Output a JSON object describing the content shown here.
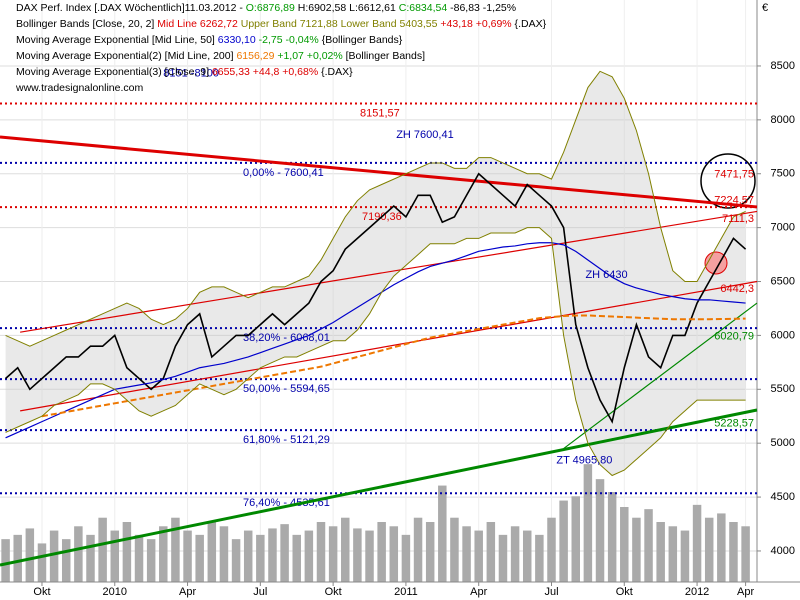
{
  "chart_data": {
    "type": "line",
    "currency": "€",
    "legend": [
      [
        {
          "text": "DAX Perf. Index [.DAX  Wöchentlich]",
          "color": "#000000"
        },
        {
          "text": "11.03.2012 - ",
          "color": "#000000"
        },
        {
          "text": "O:6876,89",
          "color": "#009900"
        },
        {
          "text": " H:6902,58 L:6612,61 ",
          "color": "#000000"
        },
        {
          "text": "C:6834,54",
          "color": "#009900"
        },
        {
          "text": " -86,83 -1,25%",
          "color": "#000000"
        }
      ],
      [
        {
          "text": "Bollinger Bands [Close, 20, 2]",
          "color": "#000000"
        },
        {
          "text": " Mid Line 6262,72",
          "color": "#dd0000"
        },
        {
          "text": " Upper Band 7121,88",
          "color": "#808000"
        },
        {
          "text": " Lower Band 5403,55",
          "color": "#808000"
        },
        {
          "text": " +43,18 +0,69%",
          "color": "#dd0000"
        },
        {
          "text": " {.DAX}",
          "color": "#000000"
        }
      ],
      [
        {
          "text": "Moving Average Exponential [Mid Line, 50]",
          "color": "#000000"
        },
        {
          "text": " 6330,10",
          "color": "#0000cc"
        },
        {
          "text": " -2,75 -0,04%",
          "color": "#009900"
        },
        {
          "text": " {Bollinger Bands}",
          "color": "#000000"
        }
      ],
      [
        {
          "text": "Moving Average Exponential(2) [Mid Line, 200]",
          "color": "#000000"
        },
        {
          "text": " 6156,29",
          "color": "#ee7700"
        },
        {
          "text": " +1,07 +0,02%",
          "color": "#009900"
        },
        {
          "text": " [Bollinger Bands]",
          "color": "#000000"
        }
      ],
      [
        {
          "text": "Moving Average Exponential(3) [Close, 9]",
          "color": "#000000"
        },
        {
          "text": " 6655,33 +44,8 +0,68%",
          "color": "#dd0000"
        },
        {
          "text": " {.DAX}",
          "color": "#000000"
        }
      ]
    ],
    "source": "www.tradesignalonline.com",
    "xlim": [
      -1.73,
      29.47
    ],
    "xticks": [
      {
        "value": 0,
        "label": "Okt"
      },
      {
        "value": 3,
        "label": "2010"
      },
      {
        "value": 6,
        "label": "Apr"
      },
      {
        "value": 9,
        "label": "Jul"
      },
      {
        "value": 12,
        "label": "Okt"
      },
      {
        "value": 15,
        "label": "2011"
      },
      {
        "value": 18,
        "label": "Apr"
      },
      {
        "value": 21,
        "label": "Jul"
      },
      {
        "value": 24,
        "label": "Okt"
      },
      {
        "value": 27,
        "label": "2012"
      },
      {
        "value": 29,
        "label": "Apr"
      }
    ],
    "ylim": [
      3545,
      9112
    ],
    "yticks": [
      4000,
      4500,
      5000,
      5500,
      6000,
      6500,
      7000,
      7500,
      8000,
      8500
    ],
    "x": [
      -1.5,
      -1,
      -0.5,
      0,
      0.5,
      1,
      1.5,
      2,
      2.5,
      3,
      3.5,
      4,
      4.5,
      5,
      5.5,
      6,
      6.5,
      7,
      7.5,
      8,
      8.5,
      9,
      9.5,
      10,
      10.5,
      11,
      11.5,
      12,
      12.5,
      13,
      13.5,
      14,
      14.5,
      15,
      15.5,
      16,
      16.5,
      17,
      17.5,
      18,
      18.5,
      19,
      19.5,
      20,
      20.5,
      21,
      21.5,
      22,
      22.5,
      23,
      23.5,
      24,
      24.5,
      25,
      25.5,
      26,
      26.5,
      27,
      27.5,
      28,
      28.5,
      29
    ],
    "series": [
      {
        "name": "DAX",
        "color": "#000000",
        "values": [
          5600,
          5700,
          5500,
          5600,
          5700,
          5800,
          5800,
          5900,
          5900,
          6000,
          5700,
          5600,
          5500,
          5600,
          5900,
          6100,
          6200,
          5800,
          5900,
          6000,
          6000,
          6100,
          6200,
          6100,
          6200,
          6300,
          6500,
          6600,
          6800,
          6900,
          7000,
          7100,
          7200,
          7100,
          7300,
          7300,
          7050,
          7100,
          7300,
          7500,
          7400,
          7300,
          7200,
          7400,
          7300,
          7200,
          7000,
          6100,
          5700,
          5400,
          5200,
          5700,
          6100,
          5800,
          5700,
          6000,
          6000,
          6300,
          6500,
          6700,
          6900,
          6800
        ]
      },
      {
        "name": "EMA 50",
        "color": "#0000cc",
        "values": [
          5050,
          5100,
          5150,
          5200,
          5250,
          5300,
          5350,
          5400,
          5450,
          5500,
          5520,
          5540,
          5560,
          5590,
          5620,
          5660,
          5700,
          5720,
          5740,
          5770,
          5800,
          5840,
          5880,
          5920,
          5960,
          6000,
          6060,
          6120,
          6190,
          6260,
          6330,
          6400,
          6470,
          6530,
          6590,
          6640,
          6670,
          6700,
          6740,
          6780,
          6800,
          6820,
          6830,
          6850,
          6860,
          6860,
          6840,
          6780,
          6700,
          6620,
          6540,
          6480,
          6440,
          6410,
          6380,
          6360,
          6340,
          6330,
          6330,
          6320,
          6310,
          6300
        ]
      },
      {
        "name": "EMA 200",
        "color": "#ee7700",
        "values": [
          null,
          null,
          null,
          5250,
          5270,
          5290,
          5310,
          5330,
          5350,
          5370,
          5390,
          5410,
          5430,
          5450,
          5470,
          5490,
          5510,
          5530,
          5550,
          5570,
          5590,
          5610,
          5630,
          5650,
          5670,
          5690,
          5710,
          5740,
          5770,
          5800,
          5830,
          5860,
          5890,
          5920,
          5950,
          5980,
          6000,
          6020,
          6040,
          6060,
          6080,
          6100,
          6120,
          6140,
          6160,
          6170,
          6180,
          6185,
          6185,
          6180,
          6175,
          6170,
          6165,
          6160,
          6155,
          6150,
          6150,
          6150,
          6150,
          6152,
          6154,
          6156
        ]
      },
      {
        "name": "Upper Band",
        "color": "#808000",
        "values": [
          6000,
          5950,
          5900,
          5950,
          6000,
          6050,
          6100,
          6150,
          6200,
          6250,
          6300,
          6250,
          6150,
          6100,
          6150,
          6250,
          6400,
          6450,
          6450,
          6400,
          6350,
          6400,
          6450,
          6450,
          6500,
          6550,
          6700,
          6900,
          7100,
          7250,
          7350,
          7400,
          7450,
          7500,
          7550,
          7600,
          7600,
          7550,
          7550,
          7650,
          7650,
          7600,
          7550,
          7500,
          7500,
          7450,
          7700,
          8000,
          8300,
          8450,
          8400,
          8200,
          7900,
          7500,
          7000,
          6600,
          6500,
          6500,
          6700,
          6900,
          7100,
          7150
        ]
      },
      {
        "name": "Lower Band",
        "color": "#808000",
        "values": [
          5100,
          5150,
          5200,
          5250,
          5350,
          5400,
          5450,
          5550,
          5550,
          5500,
          5400,
          5300,
          5250,
          5300,
          5350,
          5450,
          5550,
          5500,
          5450,
          5500,
          5600,
          5700,
          5750,
          5800,
          5800,
          5850,
          5900,
          5950,
          5950,
          6050,
          6200,
          6400,
          6550,
          6650,
          6750,
          6850,
          6850,
          6850,
          6900,
          6900,
          6950,
          6950,
          6950,
          7000,
          7000,
          6900,
          6000,
          5400,
          5000,
          4800,
          4700,
          4750,
          4850,
          4950,
          5050,
          5200,
          5300,
          5400,
          5400,
          5400,
          5400,
          5400
        ]
      }
    ],
    "volume": [
      20,
      22,
      25,
      18,
      24,
      20,
      26,
      22,
      30,
      24,
      28,
      22,
      20,
      26,
      30,
      24,
      22,
      28,
      26,
      20,
      24,
      22,
      25,
      27,
      22,
      24,
      28,
      26,
      30,
      25,
      24,
      28,
      26,
      22,
      30,
      28,
      45,
      30,
      26,
      24,
      28,
      22,
      26,
      24,
      22,
      30,
      38,
      40,
      55,
      48,
      42,
      35,
      30,
      34,
      28,
      26,
      24,
      36,
      30,
      32,
      28,
      26
    ],
    "vlim": [
      0,
      140
    ],
    "hlines": [
      {
        "value": 8151.57,
        "label": "8151,57",
        "color": "#dd0000"
      },
      {
        "value": 7600.41,
        "label": "0,00% - 7600,41",
        "color": "#0000aa"
      },
      {
        "value": 7190.36,
        "label": "7190,36",
        "color": "#dd0000"
      },
      {
        "value": 6068.01,
        "label": "38,20% - 6068,01",
        "color": "#0000aa"
      },
      {
        "value": 5594.65,
        "label": "50,00% - 5594,65",
        "color": "#0000aa"
      },
      {
        "value": 5121.29,
        "label": "61,80% - 5121,29",
        "color": "#0000aa"
      },
      {
        "value": 4535.61,
        "label": "76,40% - 4535,61",
        "color": "#0000aa"
      }
    ],
    "trendlines": [
      {
        "color": "#008800",
        "x": [
          -1.73,
          29.47
        ],
        "y": [
          3870,
          5308
        ]
      },
      {
        "color": "#dd0000",
        "x": [
          -1.73,
          29.47
        ],
        "y": [
          7841,
          7192
        ]
      },
      {
        "color": "#dd0000",
        "x": [
          -0.9,
          29.47
        ],
        "y": [
          6030,
          7150
        ]
      },
      {
        "color": "#dd0000",
        "x": [
          -0.9,
          29.47
        ],
        "y": [
          5300,
          6500
        ]
      },
      {
        "color": "#008800",
        "x": [
          21.5,
          29.47
        ],
        "y": [
          4950,
          6300
        ]
      }
    ],
    "annotations": [
      {
        "text": "ZH 7600,41",
        "x": 14.6,
        "y": 7860,
        "color": "#0000aa"
      },
      {
        "text": "ZH 6430",
        "x": 22.4,
        "y": 6560,
        "color": "#0000aa"
      },
      {
        "text": "ZT 4965,80",
        "x": 21.2,
        "y": 4840,
        "color": "#0000aa"
      },
      {
        "text": "8151 -8100",
        "x": 5.0,
        "y": 8430,
        "color": "#0000aa"
      }
    ],
    "right_labels": [
      {
        "text": "7471,75",
        "y": 7490,
        "color": "#dd0000"
      },
      {
        "text": "7224,57",
        "y": 7250,
        "color": "#dd0000"
      },
      {
        "text": "7111,3",
        "y": 7080,
        "color": "#dd0000"
      },
      {
        "text": "6442,3",
        "y": 6430,
        "color": "#dd0000"
      },
      {
        "text": "6020,79",
        "y": 5990,
        "color": "#008800"
      },
      {
        "text": "5228,57",
        "y": 5180,
        "color": "#008800"
      }
    ]
  }
}
